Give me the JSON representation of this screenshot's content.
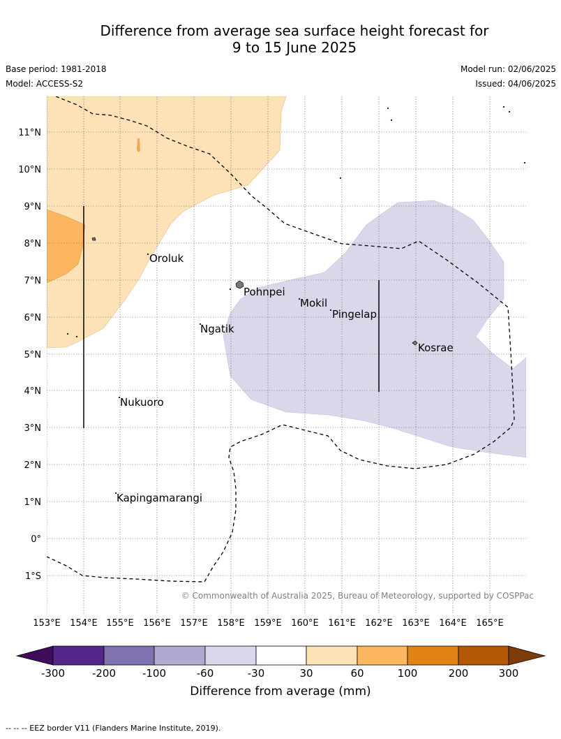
{
  "title": {
    "line1": "Difference from average sea surface height forecast for",
    "line2": "9 to 15 June 2025"
  },
  "meta": {
    "base_period": "Base period: 1981-2018",
    "model": "Model: ACCESS-S2",
    "model_run": "Model run: 02/06/2025",
    "issued": "Issued: 04/06/2025"
  },
  "map": {
    "lat_labels": [
      "11°N",
      "10°N",
      "9°N",
      "8°N",
      "7°N",
      "6°N",
      "5°N",
      "4°N",
      "3°N",
      "2°N",
      "1°N",
      "0°",
      "1°S"
    ],
    "lon_labels": [
      "153°E",
      "154°E",
      "155°E",
      "156°E",
      "157°E",
      "158°E",
      "159°E",
      "160°E",
      "161°E",
      "162°E",
      "163°E",
      "164°E",
      "165°E"
    ],
    "places": [
      "Oroluk",
      "Pohnpei",
      "Mokil",
      "Pingelap",
      "Ngatik",
      "Kosrae",
      "Nukuoro",
      "Kapingamarangi"
    ],
    "copyright": "© Commonwealth of Australia 2025, Bureau of Meteorology, supported by COSPPac",
    "colors": {
      "light_orange": "#fde1b7",
      "mid_orange": "#fcb660",
      "light_purple": "#d8d8ea",
      "eez_line": "#000000",
      "grid": "#666666"
    }
  },
  "colorbar": {
    "title": "Difference from average (mm)",
    "ticks": [
      "-300",
      "-200",
      "-100",
      "-60",
      "-30",
      "30",
      "60",
      "100",
      "200",
      "300"
    ],
    "colors": [
      "#3f0c59",
      "#56278b",
      "#8073b0",
      "#b0aad0",
      "#d8d8ea",
      "#ffffff",
      "#fde1b7",
      "#fcb660",
      "#e08214",
      "#b35806",
      "#7f3b08"
    ]
  },
  "footnote": "--  --  -- EEZ border V11 (Flanders Marine Institute, 2019)."
}
